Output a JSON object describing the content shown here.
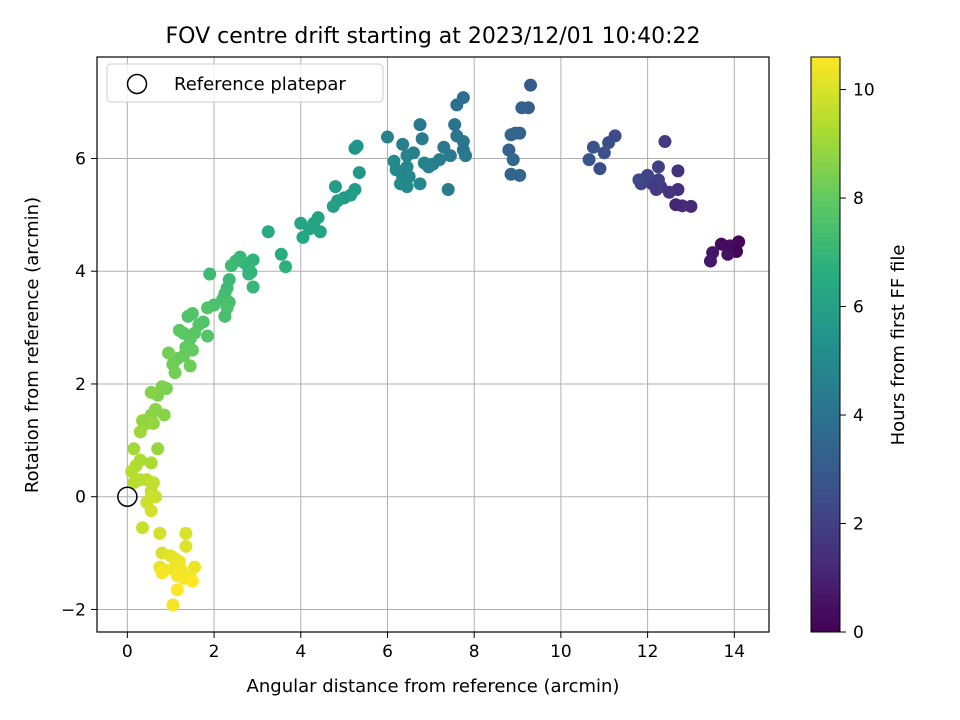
{
  "chart_data": {
    "type": "scatter",
    "title": "FOV centre drift starting at 2023/12/01 10:40:22",
    "xlabel": "Angular distance from reference (arcmin)",
    "ylabel": "Rotation from reference (arcmin)",
    "xlim": [
      -0.7,
      14.8
    ],
    "ylim": [
      -2.4,
      7.8
    ],
    "xticks": [
      0,
      2,
      4,
      6,
      8,
      10,
      12,
      14
    ],
    "yticks": [
      -2,
      0,
      2,
      4,
      6
    ],
    "xtick_labels": [
      "0",
      "2",
      "4",
      "6",
      "8",
      "10",
      "12",
      "14"
    ],
    "ytick_labels": [
      "−2",
      "0",
      "2",
      "4",
      "6"
    ],
    "grid": true,
    "legend": {
      "location": "top-left",
      "entries": [
        "Reference platepar"
      ]
    },
    "reference": {
      "x": 0,
      "y": 0,
      "label": "Reference platepar"
    },
    "colorbar": {
      "label": "Hours from first FF file",
      "colormap": "viridis",
      "range": [
        0,
        10.6
      ],
      "ticks": [
        0,
        2,
        4,
        6,
        8,
        10
      ],
      "tick_labels": [
        "0",
        "2",
        "4",
        "6",
        "8",
        "10"
      ]
    },
    "points": [
      [
        14.1,
        4.52,
        0.2
      ],
      [
        13.9,
        4.45,
        0.4
      ],
      [
        14.05,
        4.35,
        0.1
      ],
      [
        13.85,
        4.3,
        0.5
      ],
      [
        13.7,
        4.48,
        0.3
      ],
      [
        13.5,
        4.33,
        0.6
      ],
      [
        13.45,
        4.18,
        0.7
      ],
      [
        13.0,
        5.15,
        1.2
      ],
      [
        12.8,
        5.16,
        1.3
      ],
      [
        12.65,
        5.18,
        1.1
      ],
      [
        12.7,
        5.45,
        1.4
      ],
      [
        12.7,
        5.78,
        1.5
      ],
      [
        12.5,
        5.4,
        1.6
      ],
      [
        12.4,
        6.3,
        1.8
      ],
      [
        12.3,
        5.5,
        1.7
      ],
      [
        12.2,
        5.45,
        1.9
      ],
      [
        12.25,
        5.62,
        2.0
      ],
      [
        12.1,
        5.55,
        1.8
      ],
      [
        12.0,
        5.7,
        2.1
      ],
      [
        11.85,
        5.55,
        2.2
      ],
      [
        11.8,
        5.62,
        2.3
      ],
      [
        12.25,
        5.85,
        2.0
      ],
      [
        11.25,
        6.4,
        2.4
      ],
      [
        11.1,
        6.28,
        2.5
      ],
      [
        11.0,
        6.1,
        2.6
      ],
      [
        10.9,
        5.82,
        2.5
      ],
      [
        10.75,
        6.2,
        2.7
      ],
      [
        10.65,
        5.98,
        2.8
      ],
      [
        9.3,
        7.3,
        3.0
      ],
      [
        9.25,
        6.9,
        3.1
      ],
      [
        9.1,
        6.9,
        3.2
      ],
      [
        9.05,
        6.45,
        3.3
      ],
      [
        8.95,
        6.45,
        3.4
      ],
      [
        8.85,
        6.42,
        3.5
      ],
      [
        8.8,
        6.15,
        3.3
      ],
      [
        8.9,
        5.98,
        3.6
      ],
      [
        8.85,
        5.72,
        3.4
      ],
      [
        9.05,
        5.7,
        3.5
      ],
      [
        7.75,
        7.08,
        3.8
      ],
      [
        7.6,
        6.95,
        3.9
      ],
      [
        7.55,
        6.6,
        4.0
      ],
      [
        7.6,
        6.4,
        4.1
      ],
      [
        7.75,
        6.3,
        4.2
      ],
      [
        7.75,
        6.15,
        4.0
      ],
      [
        7.8,
        6.05,
        4.3
      ],
      [
        7.45,
        6.05,
        4.4
      ],
      [
        7.3,
        6.2,
        4.2
      ],
      [
        7.2,
        5.98,
        4.5
      ],
      [
        7.05,
        5.9,
        4.6
      ],
      [
        6.95,
        5.85,
        4.5
      ],
      [
        6.85,
        5.92,
        4.7
      ],
      [
        6.75,
        6.6,
        4.3
      ],
      [
        6.8,
        6.35,
        4.4
      ],
      [
        6.6,
        6.1,
        4.6
      ],
      [
        6.45,
        6.05,
        4.7
      ],
      [
        6.45,
        5.85,
        4.8
      ],
      [
        6.5,
        5.68,
        4.9
      ],
      [
        6.35,
        5.68,
        4.8
      ],
      [
        6.3,
        5.55,
        5.0
      ],
      [
        6.45,
        5.5,
        5.0
      ],
      [
        6.2,
        5.8,
        4.9
      ],
      [
        6.15,
        5.95,
        5.0
      ],
      [
        6.0,
        6.38,
        4.6
      ],
      [
        6.35,
        6.25,
        4.5
      ],
      [
        6.75,
        5.55,
        4.9
      ],
      [
        7.4,
        5.45,
        4.4
      ],
      [
        5.3,
        6.22,
        5.4
      ],
      [
        5.25,
        6.18,
        5.5
      ],
      [
        5.35,
        5.75,
        5.6
      ],
      [
        5.25,
        5.45,
        5.7
      ],
      [
        5.15,
        5.35,
        5.8
      ],
      [
        5.0,
        5.3,
        5.7
      ],
      [
        4.85,
        5.25,
        5.9
      ],
      [
        4.8,
        5.5,
        5.8
      ],
      [
        4.75,
        5.15,
        6.0
      ],
      [
        4.4,
        4.95,
        6.1
      ],
      [
        4.3,
        4.85,
        6.2
      ],
      [
        4.2,
        4.75,
        6.2
      ],
      [
        4.05,
        4.6,
        6.3
      ],
      [
        4.0,
        4.85,
        6.2
      ],
      [
        4.45,
        4.7,
        6.1
      ],
      [
        3.25,
        4.7,
        6.5
      ],
      [
        3.55,
        4.3,
        6.6
      ],
      [
        3.65,
        4.08,
        6.7
      ],
      [
        2.9,
        4.2,
        6.8
      ],
      [
        2.85,
        3.98,
        6.9
      ],
      [
        2.8,
        4.05,
        7.0
      ],
      [
        2.7,
        4.15,
        6.9
      ],
      [
        2.6,
        4.25,
        7.0
      ],
      [
        2.5,
        4.18,
        7.1
      ],
      [
        2.4,
        4.1,
        7.2
      ],
      [
        2.35,
        3.85,
        7.1
      ],
      [
        2.3,
        3.7,
        7.2
      ],
      [
        2.25,
        3.6,
        7.3
      ],
      [
        2.2,
        3.5,
        7.3
      ],
      [
        2.35,
        3.45,
        7.4
      ],
      [
        2.3,
        3.35,
        7.5
      ],
      [
        2.25,
        3.2,
        7.4
      ],
      [
        2.0,
        3.4,
        7.5
      ],
      [
        1.85,
        3.35,
        7.6
      ],
      [
        1.9,
        3.95,
        7.2
      ],
      [
        2.9,
        3.72,
        7.0
      ],
      [
        2.8,
        3.95,
        6.9
      ],
      [
        1.75,
        3.1,
        7.6
      ],
      [
        1.65,
        3.05,
        7.7
      ],
      [
        1.5,
        3.25,
        7.7
      ],
      [
        1.4,
        3.2,
        7.6
      ],
      [
        1.55,
        2.9,
        7.8
      ],
      [
        1.45,
        2.8,
        7.9
      ],
      [
        1.3,
        2.9,
        7.8
      ],
      [
        1.2,
        2.95,
        7.9
      ],
      [
        1.5,
        2.6,
        8.0
      ],
      [
        1.35,
        2.65,
        8.0
      ],
      [
        1.3,
        2.5,
        8.1
      ],
      [
        1.15,
        2.45,
        8.1
      ],
      [
        1.05,
        2.35,
        8.2
      ],
      [
        1.1,
        2.2,
        8.3
      ],
      [
        1.45,
        2.32,
        8.2
      ],
      [
        1.85,
        2.85,
        7.7
      ],
      [
        0.95,
        2.55,
        8.3
      ],
      [
        0.9,
        1.92,
        8.4
      ],
      [
        0.8,
        1.95,
        8.5
      ],
      [
        0.7,
        1.8,
        8.5
      ],
      [
        0.55,
        1.85,
        8.6
      ],
      [
        0.65,
        1.55,
        8.7
      ],
      [
        0.55,
        1.45,
        8.7
      ],
      [
        0.85,
        1.45,
        8.6
      ],
      [
        0.6,
        1.3,
        8.8
      ],
      [
        0.45,
        1.3,
        8.9
      ],
      [
        0.35,
        1.35,
        8.8
      ],
      [
        0.3,
        1.15,
        9.0
      ],
      [
        0.15,
        0.85,
        9.1
      ],
      [
        0.7,
        0.85,
        8.9
      ],
      [
        0.55,
        0.6,
        9.2
      ],
      [
        0.3,
        0.65,
        9.2
      ],
      [
        0.2,
        0.55,
        9.3
      ],
      [
        0.1,
        0.45,
        9.4
      ],
      [
        0.15,
        0.25,
        9.5
      ],
      [
        0.3,
        0.3,
        9.4
      ],
      [
        0.45,
        0.3,
        9.5
      ],
      [
        0.6,
        0.25,
        9.6
      ],
      [
        0.55,
        0.1,
        9.6
      ],
      [
        0.65,
        0.0,
        9.7
      ],
      [
        0.55,
        0.0,
        9.8
      ],
      [
        0.45,
        -0.1,
        9.8
      ],
      [
        0.55,
        -0.25,
        9.9
      ],
      [
        0.35,
        -0.55,
        9.7
      ],
      [
        0.75,
        -0.65,
        9.9
      ],
      [
        0.8,
        -1.0,
        10.0
      ],
      [
        1.0,
        -1.05,
        10.1
      ],
      [
        1.35,
        -0.65,
        10.0
      ],
      [
        1.35,
        -0.88,
        10.1
      ],
      [
        1.1,
        -1.1,
        10.2
      ],
      [
        1.2,
        -1.15,
        10.3
      ],
      [
        0.75,
        -1.25,
        10.2
      ],
      [
        0.85,
        -1.3,
        10.3
      ],
      [
        1.05,
        -1.28,
        10.4
      ],
      [
        1.25,
        -1.3,
        10.4
      ],
      [
        1.55,
        -1.25,
        10.3
      ],
      [
        0.8,
        -1.35,
        10.5
      ],
      [
        1.15,
        -1.4,
        10.5
      ],
      [
        1.3,
        -1.45,
        10.5
      ],
      [
        1.45,
        -1.42,
        10.4
      ],
      [
        1.5,
        -1.5,
        10.6
      ],
      [
        1.15,
        -1.65,
        10.6
      ],
      [
        1.05,
        -1.92,
        10.5
      ]
    ]
  }
}
